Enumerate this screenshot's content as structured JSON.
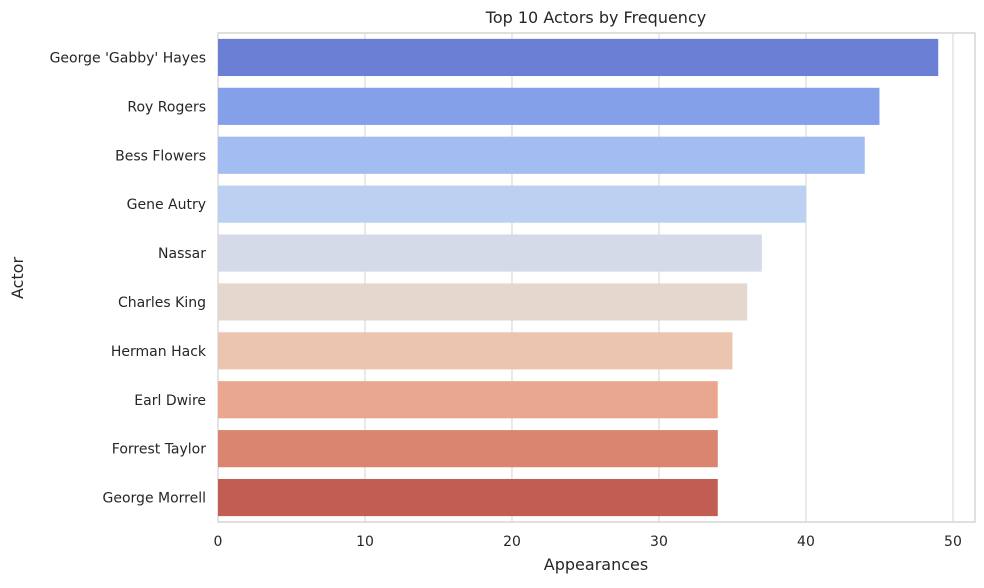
{
  "chart_data": {
    "type": "bar",
    "orientation": "horizontal",
    "title": "Top 10 Actors by Frequency",
    "xlabel": "Appearances",
    "ylabel": "Actor",
    "categories": [
      "George 'Gabby' Hayes",
      "Roy Rogers",
      "Bess Flowers",
      "Gene Autry",
      "Nassar",
      "Charles King",
      "Herman Hack",
      "Earl Dwire",
      "Forrest Taylor",
      "George Morrell"
    ],
    "values": [
      49,
      45,
      44,
      40,
      37,
      36,
      35,
      34,
      34,
      34
    ],
    "colors": [
      "#6b80d4",
      "#84a0e8",
      "#a3bcf2",
      "#bcd0f2",
      "#d4dae8",
      "#e4d7ce",
      "#ecc5b0",
      "#e8a78e",
      "#d9856f",
      "#c25d53"
    ],
    "xlim": [
      0,
      51.5
    ],
    "xticks": [
      0,
      10,
      20,
      30,
      40,
      50
    ],
    "grid": true,
    "legend": "none"
  }
}
